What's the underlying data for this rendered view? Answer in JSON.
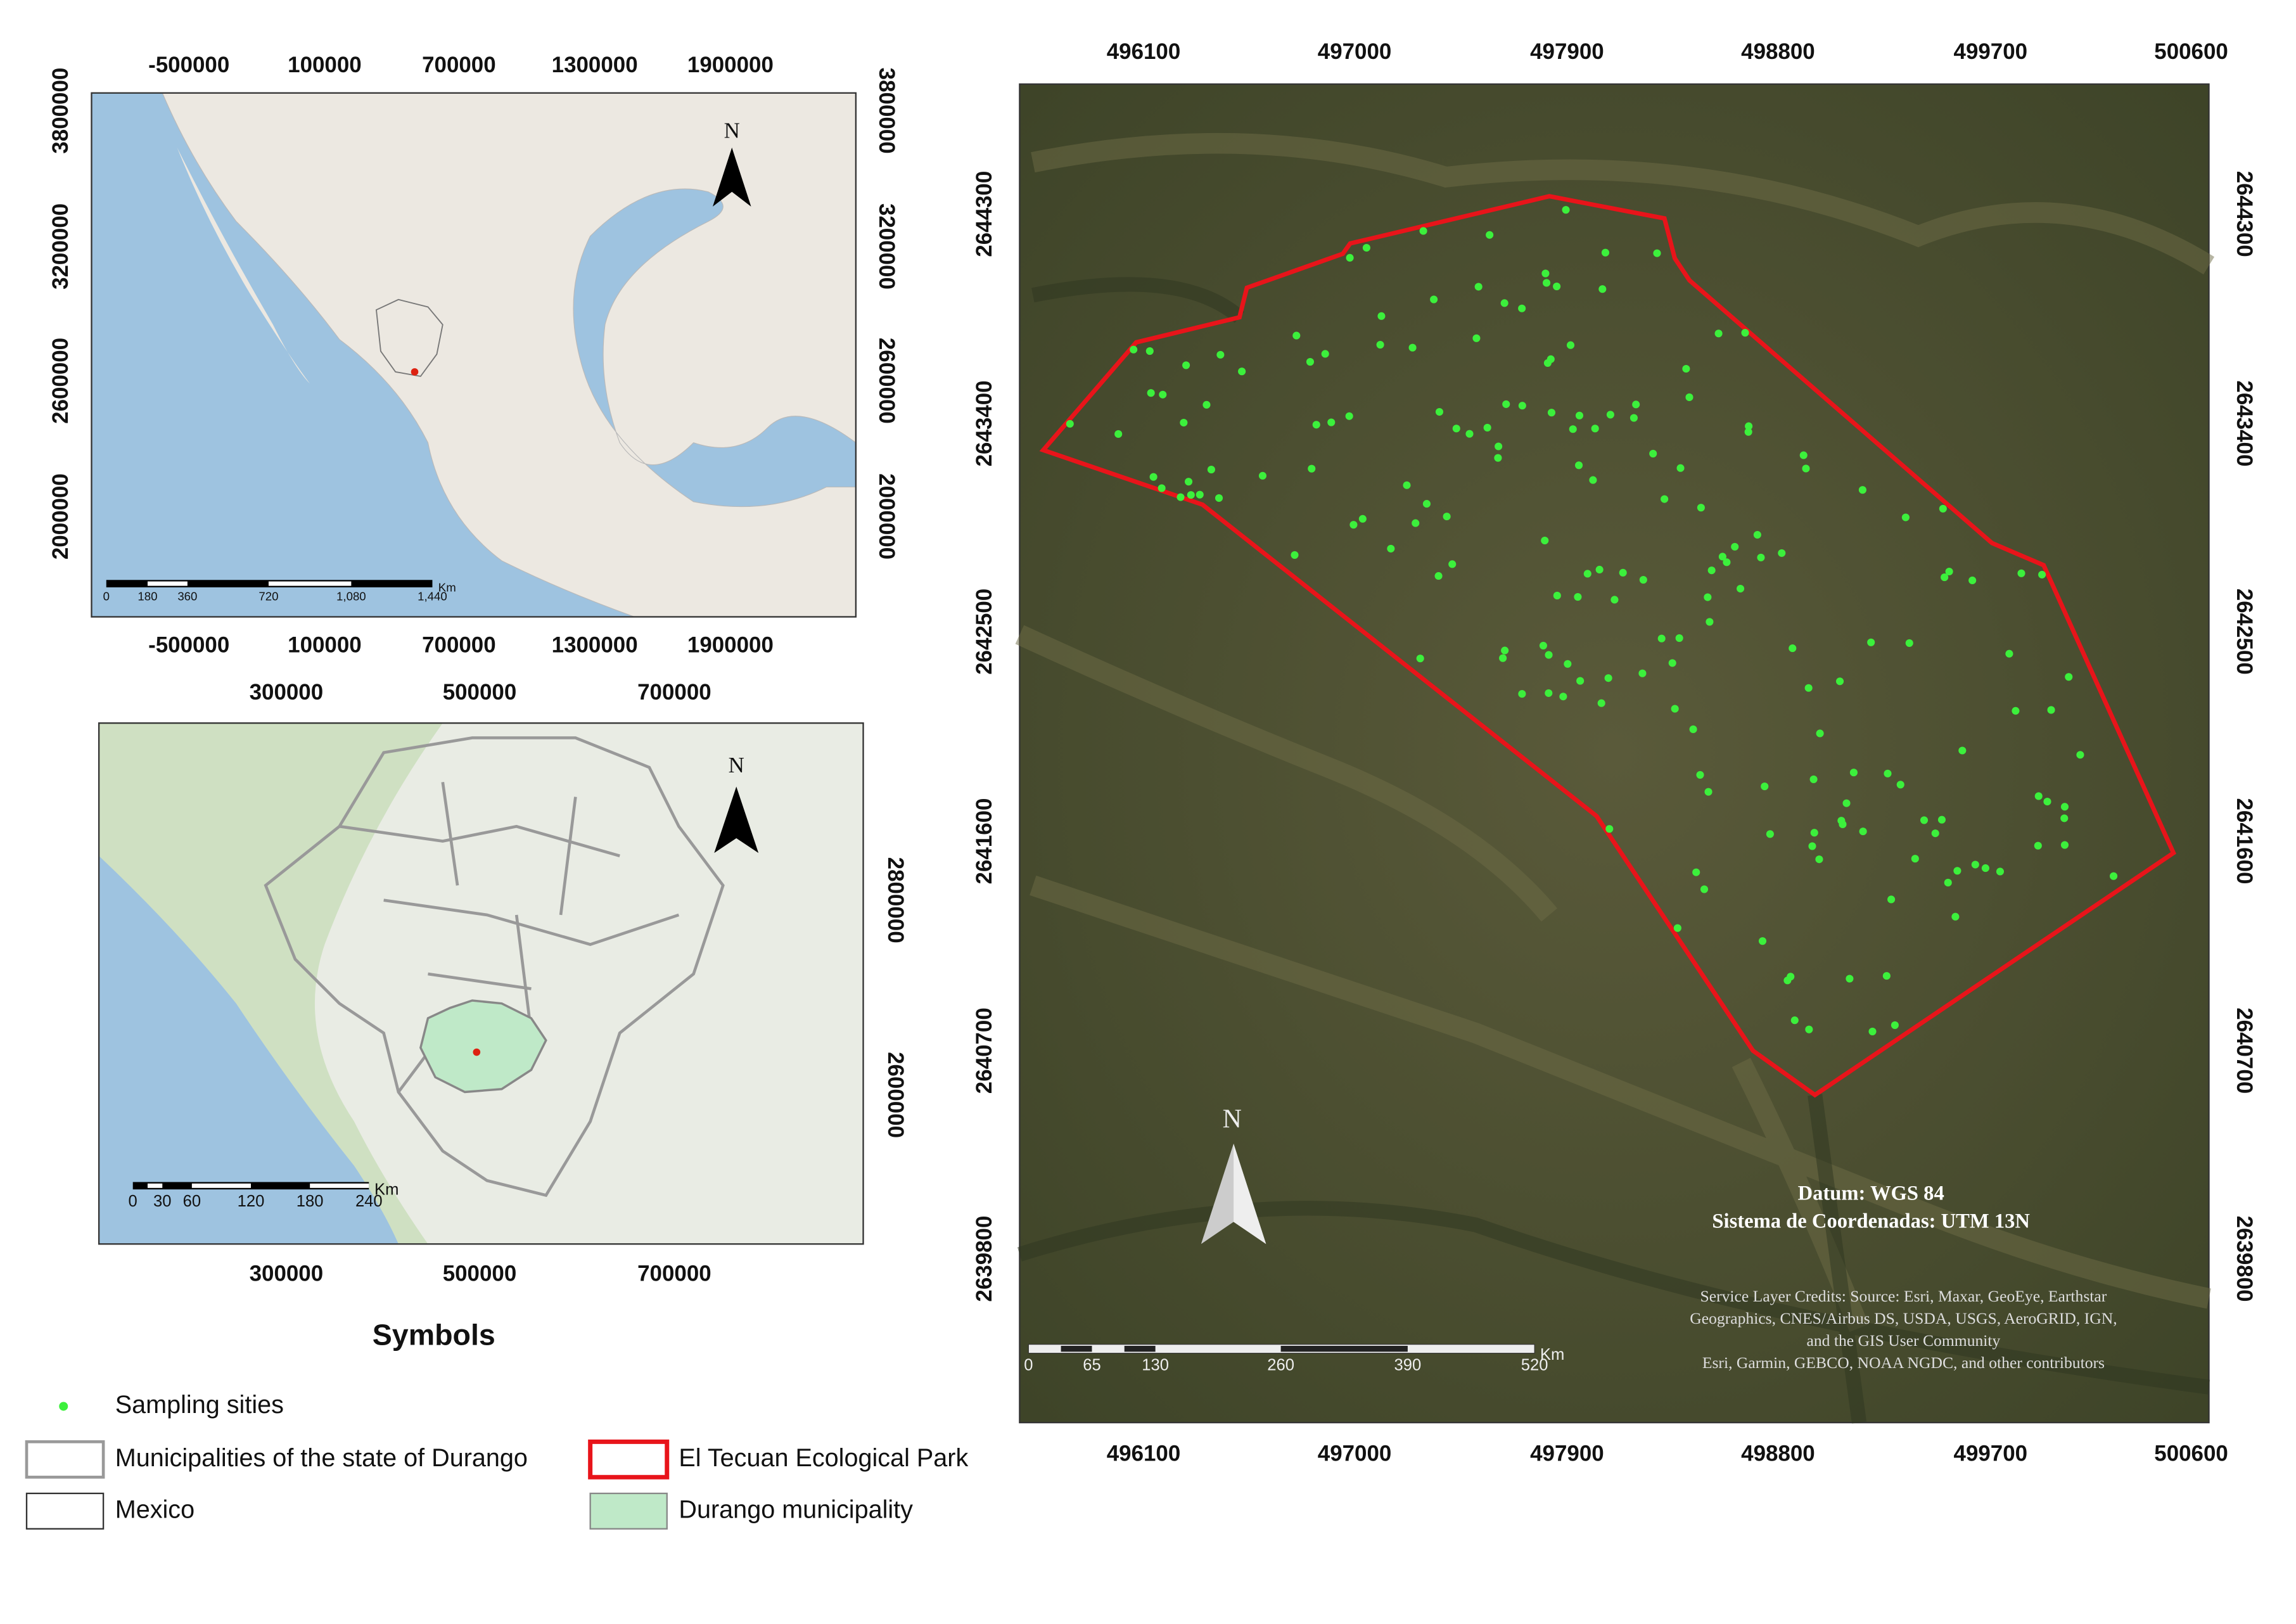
{
  "inset_mexico": {
    "x_ticks": [
      -500000,
      100000,
      700000,
      1300000,
      1900000
    ],
    "y_ticks": [
      3800000,
      3200000,
      2600000,
      2000000
    ],
    "north": "N",
    "scale_unit": "Km",
    "scale_labels": [
      0,
      180,
      360,
      720,
      "1,080",
      "1,440"
    ]
  },
  "inset_durango": {
    "x_ticks": [
      300000,
      500000,
      700000
    ],
    "y_ticks": [
      2800000,
      2600000
    ],
    "north": "N",
    "scale_unit": "Km",
    "scale_labels": [
      0,
      30,
      60,
      120,
      180,
      240
    ]
  },
  "main_map": {
    "x_ticks": [
      496100,
      497000,
      497900,
      498800,
      499700,
      500600
    ],
    "y_ticks": [
      2644300,
      2643400,
      2642500,
      2641600,
      2640700,
      2639800
    ],
    "north": "N",
    "datum": "Datum: WGS 84",
    "crs": "Sistema de Coordenadas: UTM 13N",
    "credits": [
      "Service Layer Credits: Source: Esri, Maxar, GeoEye, Earthstar",
      "Geographics, CNES/Airbus DS, USDA, USGS, AeroGRID, IGN,",
      "and the GIS User Community",
      "Esri, Garmin, GEBCO, NOAA NGDC, and other contributors"
    ],
    "scale_unit": "Km",
    "scale_labels": [
      0,
      65,
      130,
      260,
      390,
      520
    ]
  },
  "legend": {
    "title": "Symbols",
    "items": [
      "Sampling sities",
      "Municipalities of the state of Durango",
      "El Tecuan Ecological Park",
      "Mexico",
      "Durango municipality"
    ]
  }
}
